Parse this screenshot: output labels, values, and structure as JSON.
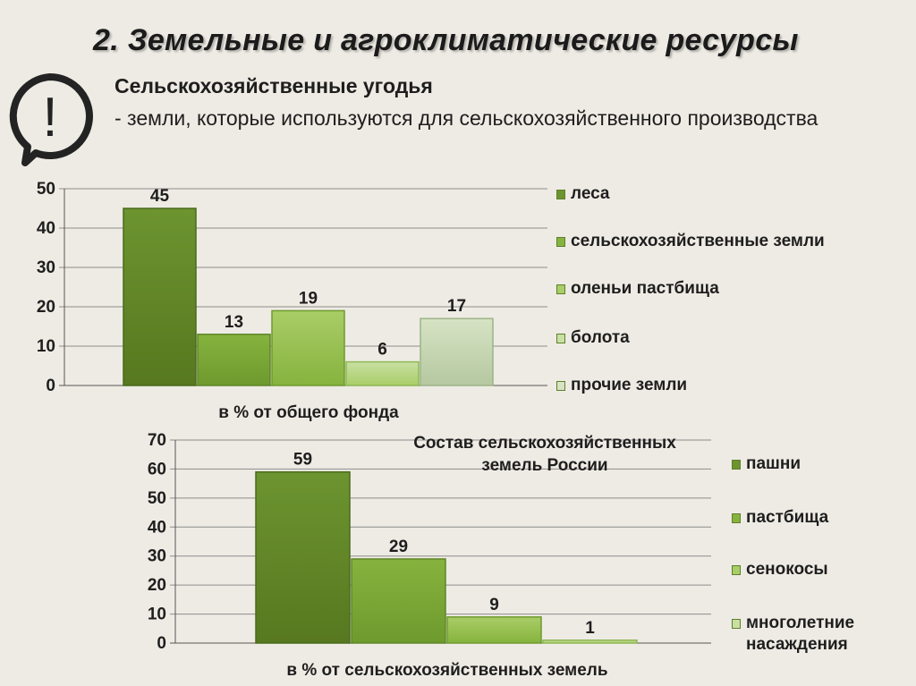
{
  "header": {
    "title": "2. Земельные и агроклиматические ресурсы",
    "heading": "Сельскохозяйственные угодья",
    "definition": "- земли, которые используются для сельскохозяйственного производства",
    "alert_icon_text": "!"
  },
  "colors": {
    "leaf_dark": "#6c9430",
    "leaf_mid": "#86b33e",
    "leaf_light": "#a9cd67",
    "pale": "#c9e0a3",
    "grey_green": "#d6e3c4"
  },
  "chart_data": [
    {
      "type": "bar",
      "xlabel": "в % от общего фонда",
      "ylim": [
        0,
        50
      ],
      "yticks": [
        0,
        10,
        20,
        30,
        40,
        50
      ],
      "grid": true,
      "legend_position": "right",
      "series": [
        {
          "name": "леса",
          "values": [
            45
          ]
        },
        {
          "name": "сельскохозяйственные земли",
          "values": [
            13
          ]
        },
        {
          "name": "оленьи пастбища",
          "values": [
            19
          ]
        },
        {
          "name": "болота",
          "values": [
            6
          ]
        },
        {
          "name": "прочие земли",
          "values": [
            17
          ]
        }
      ]
    },
    {
      "type": "bar",
      "title": "Состав сельскохозяйственных земель России",
      "xlabel": "в % от сельскохозяйственных земель",
      "ylim": [
        0,
        70
      ],
      "yticks": [
        0,
        10,
        20,
        30,
        40,
        50,
        60,
        70
      ],
      "grid": true,
      "legend_position": "right",
      "series": [
        {
          "name": "пашни",
          "values": [
            59
          ]
        },
        {
          "name": "пастбища",
          "values": [
            29
          ]
        },
        {
          "name": "сенокосы",
          "values": [
            9
          ]
        },
        {
          "name": "многолетние насаждения",
          "values": [
            1
          ]
        }
      ]
    }
  ]
}
